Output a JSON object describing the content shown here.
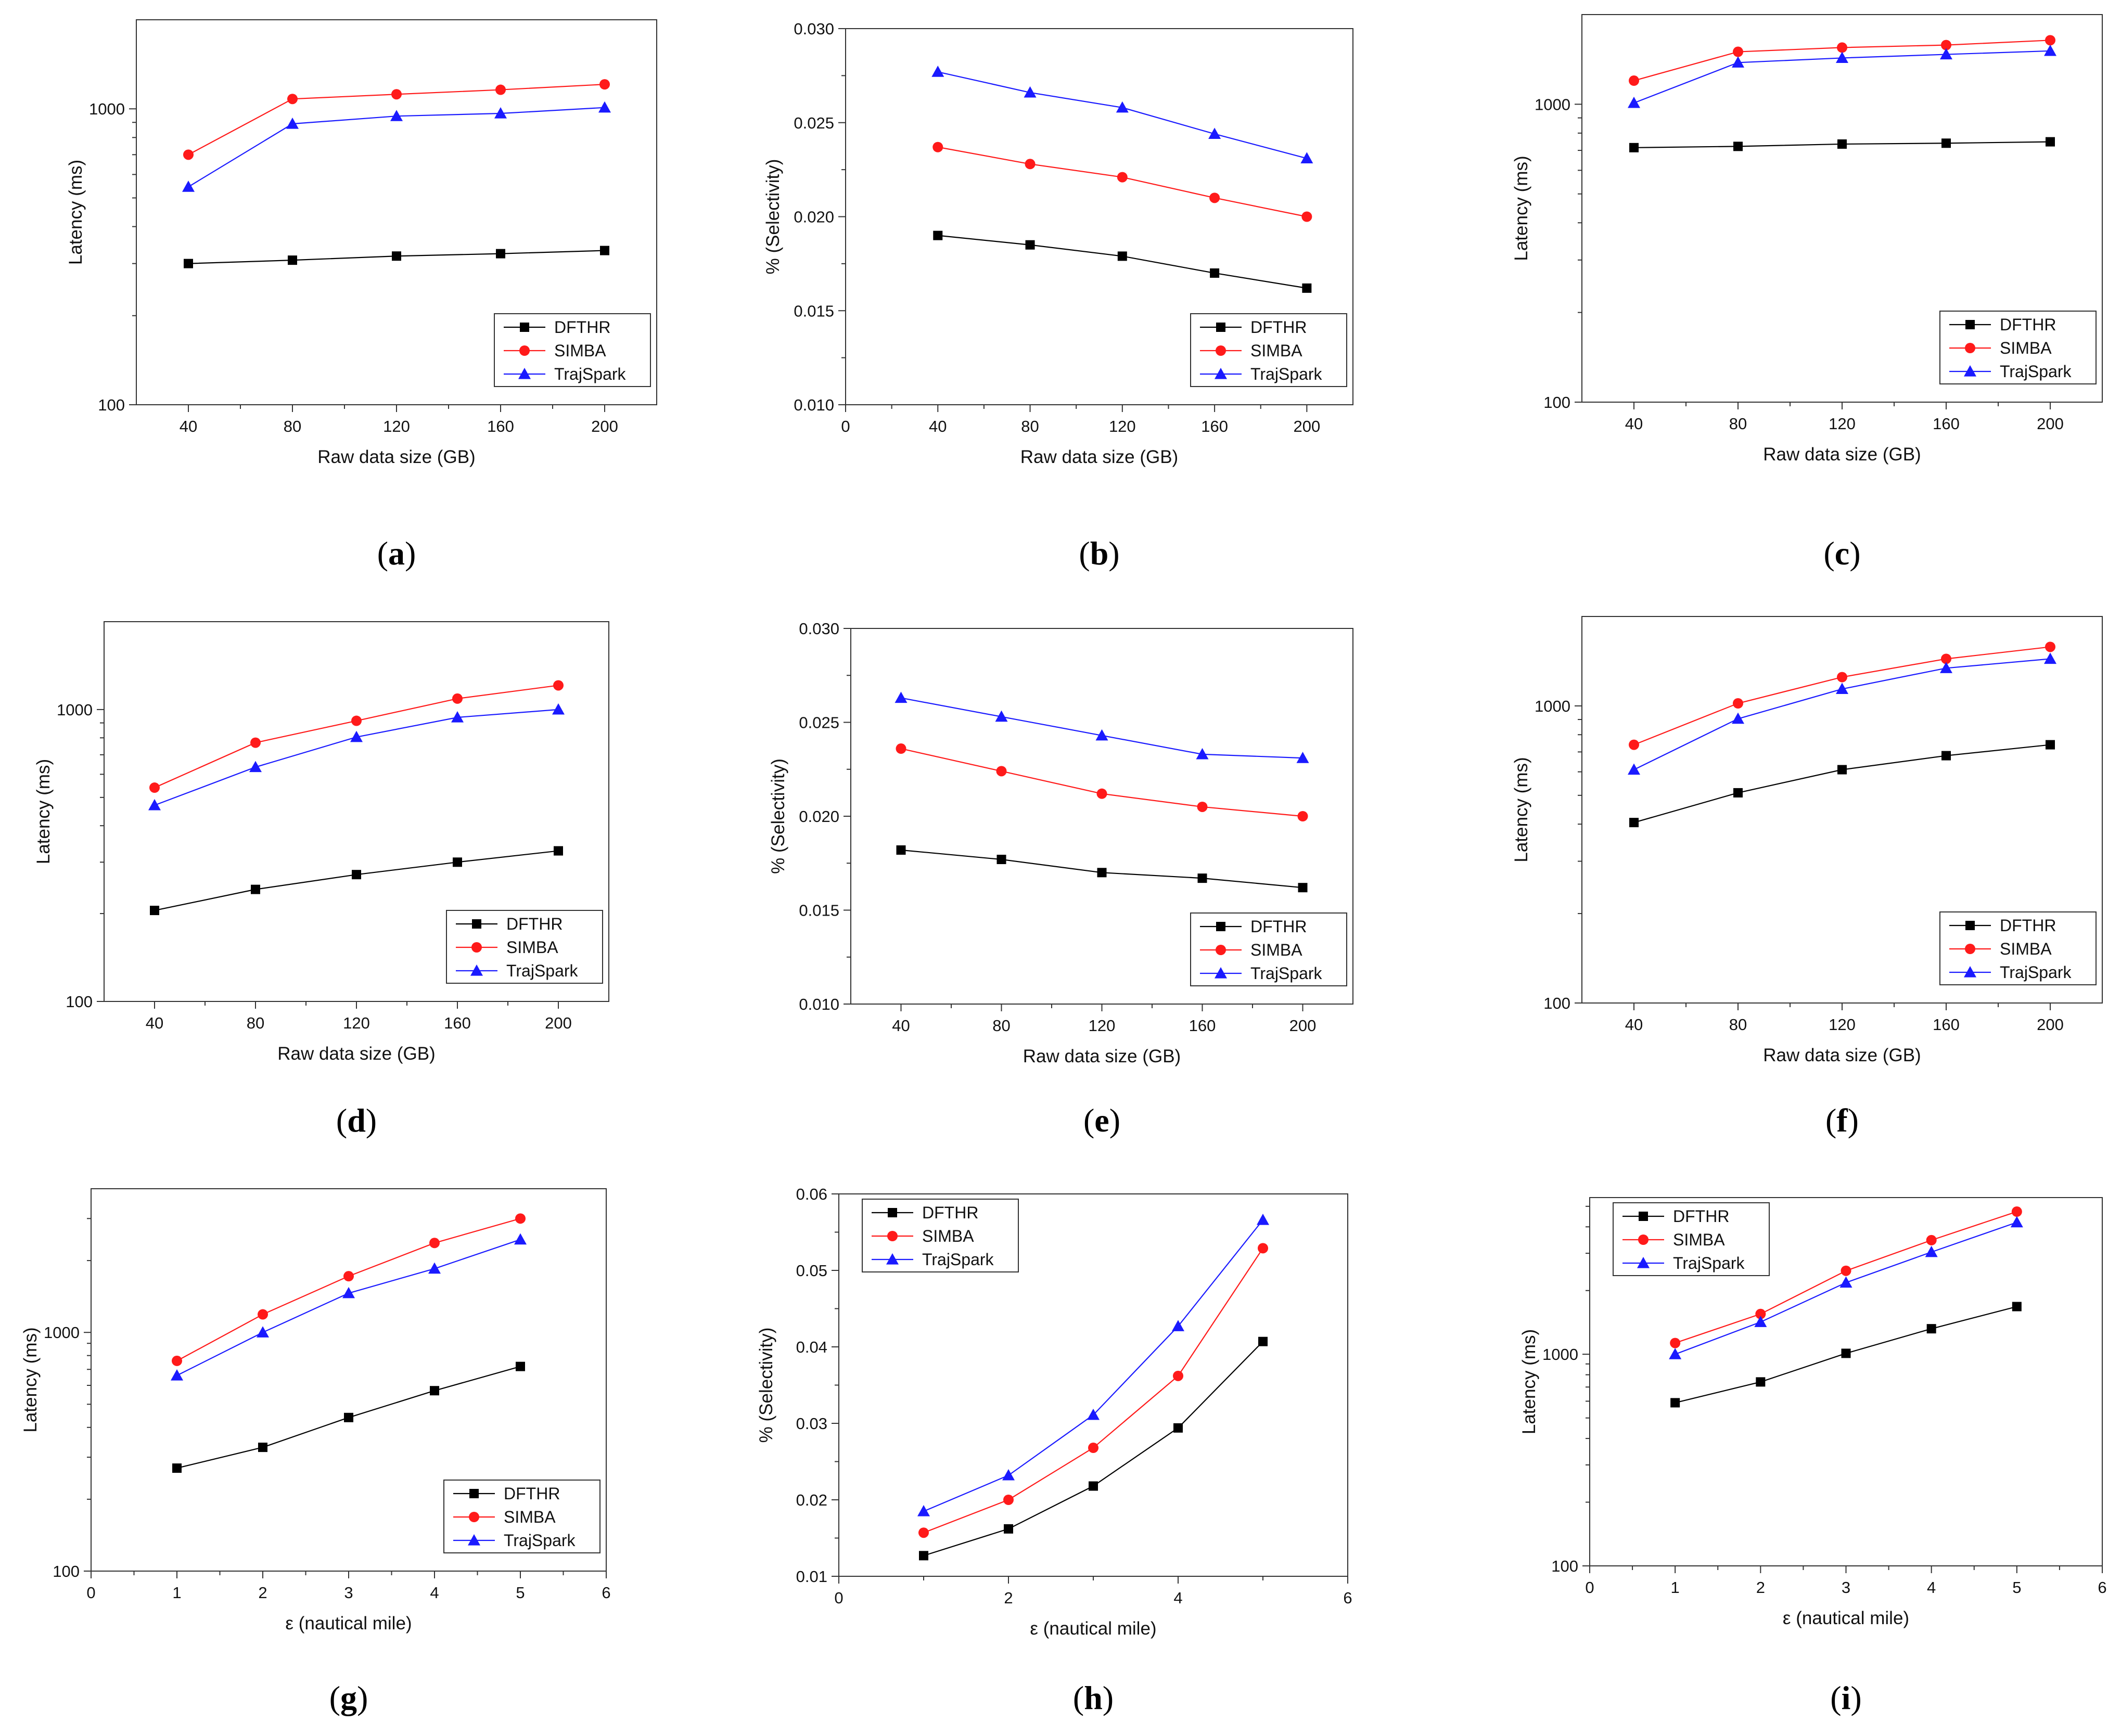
{
  "colors": {
    "DFTHR": "#000000",
    "SIMBA": "#ff1a1a",
    "TrajSpark": "#1a1aff",
    "axis": "#333333"
  },
  "chart_data": [
    {
      "type": "line",
      "caption": "a",
      "xlabel": "Raw data size (GB)",
      "ylabel": "Latency (ms)",
      "yscale": "log",
      "xlim": [
        20,
        220
      ],
      "ylim": [
        100,
        2000
      ],
      "xticks": [
        40,
        80,
        120,
        160,
        200
      ],
      "yticks": [
        100,
        1000
      ],
      "yticklabels": [
        "100",
        "1000"
      ],
      "legend": "bottom-right",
      "series": [
        {
          "name": "DFTHR",
          "marker": "square",
          "x": [
            40,
            80,
            120,
            160,
            200
          ],
          "y": [
            300,
            308,
            318,
            324,
            332
          ]
        },
        {
          "name": "SIMBA",
          "marker": "circle",
          "x": [
            40,
            80,
            120,
            160,
            200
          ],
          "y": [
            700,
            1080,
            1120,
            1160,
            1210
          ]
        },
        {
          "name": "TrajSpark",
          "marker": "triangle",
          "x": [
            40,
            80,
            120,
            160,
            200
          ],
          "y": [
            545,
            890,
            945,
            965,
            1010
          ]
        }
      ]
    },
    {
      "type": "line",
      "caption": "b",
      "xlabel": "Raw data size (GB)",
      "ylabel": "% (Selectivity)",
      "yscale": "linear",
      "xlim": [
        0,
        220
      ],
      "ylim": [
        0.01,
        0.03
      ],
      "xticks": [
        0,
        40,
        80,
        120,
        160,
        200
      ],
      "yticks": [
        0.01,
        0.015,
        0.02,
        0.025,
        0.03
      ],
      "yticklabels": [
        "0.010",
        "0.015",
        "0.020",
        "0.025",
        "0.030"
      ],
      "legend": "bottom-right",
      "series": [
        {
          "name": "DFTHR",
          "marker": "square",
          "x": [
            40,
            80,
            120,
            160,
            200
          ],
          "y": [
            0.019,
            0.0185,
            0.0179,
            0.017,
            0.0162
          ]
        },
        {
          "name": "SIMBA",
          "marker": "circle",
          "x": [
            40,
            80,
            120,
            160,
            200
          ],
          "y": [
            0.0237,
            0.0228,
            0.0221,
            0.021,
            0.02
          ]
        },
        {
          "name": "TrajSpark",
          "marker": "triangle",
          "x": [
            40,
            80,
            120,
            160,
            200
          ],
          "y": [
            0.0277,
            0.0266,
            0.0258,
            0.0244,
            0.0231
          ]
        }
      ]
    },
    {
      "type": "line",
      "caption": "c",
      "xlabel": "Raw data size (GB)",
      "ylabel": "Latency (ms)",
      "yscale": "log",
      "xlim": [
        20,
        220
      ],
      "ylim": [
        100,
        2000
      ],
      "xticks": [
        40,
        80,
        120,
        160,
        200
      ],
      "yticks": [
        100,
        1000
      ],
      "yticklabels": [
        "100",
        "1000"
      ],
      "legend": "bottom-right",
      "series": [
        {
          "name": "DFTHR",
          "marker": "square",
          "x": [
            40,
            80,
            120,
            160,
            200
          ],
          "y": [
            715,
            722,
            735,
            740,
            748
          ]
        },
        {
          "name": "SIMBA",
          "marker": "circle",
          "x": [
            40,
            80,
            120,
            160,
            200
          ],
          "y": [
            1200,
            1500,
            1550,
            1580,
            1640
          ]
        },
        {
          "name": "TrajSpark",
          "marker": "triangle",
          "x": [
            40,
            80,
            120,
            160,
            200
          ],
          "y": [
            1010,
            1380,
            1430,
            1470,
            1510
          ]
        }
      ]
    },
    {
      "type": "line",
      "caption": "d",
      "xlabel": "Raw data size (GB)",
      "ylabel": "Latency (ms)",
      "yscale": "log",
      "xlim": [
        20,
        220
      ],
      "ylim": [
        100,
        2000
      ],
      "xticks": [
        40,
        80,
        120,
        160,
        200
      ],
      "yticks": [
        100,
        1000
      ],
      "yticklabels": [
        "100",
        "1000"
      ],
      "legend": "bottom-right",
      "series": [
        {
          "name": "DFTHR",
          "marker": "square",
          "x": [
            40,
            80,
            120,
            160,
            200
          ],
          "y": [
            205,
            242,
            272,
            300,
            328
          ]
        },
        {
          "name": "SIMBA",
          "marker": "circle",
          "x": [
            40,
            80,
            120,
            160,
            200
          ],
          "y": [
            540,
            770,
            915,
            1090,
            1210
          ]
        },
        {
          "name": "TrajSpark",
          "marker": "triangle",
          "x": [
            40,
            80,
            120,
            160,
            200
          ],
          "y": [
            470,
            635,
            805,
            940,
            1000
          ]
        }
      ]
    },
    {
      "type": "line",
      "caption": "e",
      "xlabel": "Raw data size (GB)",
      "ylabel": "% (Selectivity)",
      "yscale": "linear",
      "xlim": [
        20,
        220
      ],
      "ylim": [
        0.01,
        0.03
      ],
      "xticks": [
        40,
        80,
        120,
        160,
        200
      ],
      "yticks": [
        0.01,
        0.015,
        0.02,
        0.025,
        0.03
      ],
      "yticklabels": [
        "0.010",
        "0.015",
        "0.020",
        "0.025",
        "0.030"
      ],
      "legend": "bottom-right",
      "series": [
        {
          "name": "DFTHR",
          "marker": "square",
          "x": [
            40,
            80,
            120,
            160,
            200
          ],
          "y": [
            0.0182,
            0.0177,
            0.017,
            0.0167,
            0.0162
          ]
        },
        {
          "name": "SIMBA",
          "marker": "circle",
          "x": [
            40,
            80,
            120,
            160,
            200
          ],
          "y": [
            0.0236,
            0.0224,
            0.0212,
            0.0205,
            0.02
          ]
        },
        {
          "name": "TrajSpark",
          "marker": "triangle",
          "x": [
            40,
            80,
            120,
            160,
            200
          ],
          "y": [
            0.0263,
            0.0253,
            0.0243,
            0.0233,
            0.0231
          ]
        }
      ]
    },
    {
      "type": "line",
      "caption": "f",
      "xlabel": "Raw data size (GB)",
      "ylabel": "Latency (ms)",
      "yscale": "log",
      "xlim": [
        20,
        220
      ],
      "ylim": [
        100,
        2000
      ],
      "xticks": [
        40,
        80,
        120,
        160,
        200
      ],
      "yticks": [
        100,
        1000
      ],
      "yticklabels": [
        "100",
        "1000"
      ],
      "legend": "bottom-right",
      "series": [
        {
          "name": "DFTHR",
          "marker": "square",
          "x": [
            40,
            80,
            120,
            160,
            200
          ],
          "y": [
            405,
            510,
            610,
            680,
            740
          ]
        },
        {
          "name": "SIMBA",
          "marker": "circle",
          "x": [
            40,
            80,
            120,
            160,
            200
          ],
          "y": [
            740,
            1020,
            1250,
            1440,
            1580
          ]
        },
        {
          "name": "TrajSpark",
          "marker": "triangle",
          "x": [
            40,
            80,
            120,
            160,
            200
          ],
          "y": [
            610,
            905,
            1140,
            1340,
            1440
          ]
        }
      ]
    },
    {
      "type": "line",
      "caption": "g",
      "xlabel": "ε (nautical mile)",
      "ylabel": "Latency (ms)",
      "yscale": "log",
      "xlim": [
        0,
        6
      ],
      "ylim": [
        100,
        4000
      ],
      "xticks": [
        0,
        1,
        2,
        3,
        4,
        5,
        6
      ],
      "yticks": [
        100,
        1000
      ],
      "yticklabels": [
        "100",
        "1000"
      ],
      "legend": "bottom-right",
      "series": [
        {
          "name": "DFTHR",
          "marker": "square",
          "x": [
            1,
            2,
            3,
            4,
            5
          ],
          "y": [
            270,
            330,
            440,
            570,
            720
          ]
        },
        {
          "name": "SIMBA",
          "marker": "circle",
          "x": [
            1,
            2,
            3,
            4,
            5
          ],
          "y": [
            760,
            1190,
            1720,
            2370,
            3000
          ]
        },
        {
          "name": "TrajSpark",
          "marker": "triangle",
          "x": [
            1,
            2,
            3,
            4,
            5
          ],
          "y": [
            660,
            1000,
            1460,
            1850,
            2450
          ]
        }
      ]
    },
    {
      "type": "line",
      "caption": "h",
      "xlabel": "ε (nautical mile)",
      "ylabel": "% (Selectivity)",
      "yscale": "linear",
      "xlim": [
        0,
        6
      ],
      "ylim": [
        0.01,
        0.06
      ],
      "xticks": [
        0,
        2,
        4,
        6
      ],
      "yticks": [
        0.01,
        0.02,
        0.03,
        0.04,
        0.05,
        0.06
      ],
      "yticklabels": [
        "0.01",
        "0.02",
        "0.03",
        "0.04",
        "0.05",
        "0.06"
      ],
      "legend": "top-left",
      "series": [
        {
          "name": "DFTHR",
          "marker": "square",
          "x": [
            1,
            2,
            3,
            4,
            5
          ],
          "y": [
            0.0127,
            0.0162,
            0.0218,
            0.0294,
            0.0407
          ]
        },
        {
          "name": "SIMBA",
          "marker": "circle",
          "x": [
            1,
            2,
            3,
            4,
            5
          ],
          "y": [
            0.0157,
            0.02,
            0.0268,
            0.0362,
            0.0529
          ]
        },
        {
          "name": "TrajSpark",
          "marker": "triangle",
          "x": [
            1,
            2,
            3,
            4,
            5
          ],
          "y": [
            0.0185,
            0.0232,
            0.0311,
            0.0427,
            0.0566
          ]
        }
      ]
    },
    {
      "type": "line",
      "caption": "i",
      "xlabel": "ε (nautical mile)",
      "ylabel": "Latency (ms)",
      "yscale": "log",
      "xlim": [
        0,
        6
      ],
      "ylim": [
        100,
        5500
      ],
      "xticks": [
        0,
        1,
        2,
        3,
        4,
        5,
        6
      ],
      "yticks": [
        100,
        1000
      ],
      "yticklabels": [
        "100",
        "1000"
      ],
      "legend": "top-left",
      "series": [
        {
          "name": "DFTHR",
          "marker": "square",
          "x": [
            1,
            2,
            3,
            4,
            5
          ],
          "y": [
            590,
            740,
            1010,
            1320,
            1680
          ]
        },
        {
          "name": "SIMBA",
          "marker": "circle",
          "x": [
            1,
            2,
            3,
            4,
            5
          ],
          "y": [
            1130,
            1550,
            2480,
            3460,
            4720
          ]
        },
        {
          "name": "TrajSpark",
          "marker": "triangle",
          "x": [
            1,
            2,
            3,
            4,
            5
          ],
          "y": [
            1000,
            1420,
            2180,
            3040,
            4200
          ]
        }
      ]
    }
  ]
}
